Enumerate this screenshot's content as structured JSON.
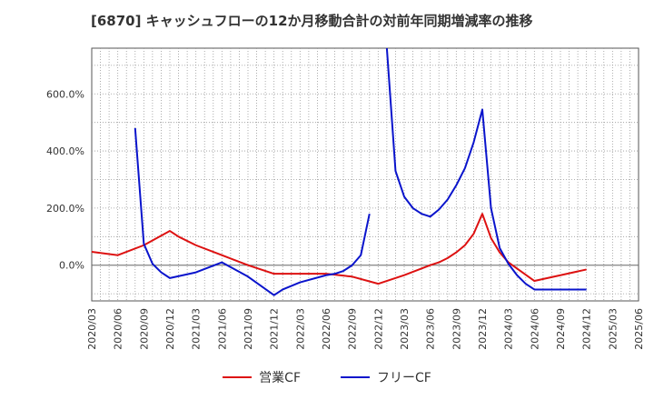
{
  "chart_data": {
    "type": "line",
    "title": "[6870]  キャッシュフローの12か月移動合計の対前年同期増減率の推移",
    "ylim": [
      -125,
      760
    ],
    "yticks": [
      0,
      200,
      400,
      600
    ],
    "ytick_labels": [
      "0.0%",
      "200.0%",
      "400.0%",
      "600.0%"
    ],
    "grid": true,
    "legend_position": "bottom",
    "x_start": "2020/03",
    "x_end": "2025/06",
    "x_tick_labels": [
      "2020/03",
      "2020/06",
      "2020/09",
      "2020/12",
      "2021/03",
      "2021/06",
      "2021/09",
      "2021/12",
      "2022/03",
      "2022/06",
      "2022/09",
      "2022/12",
      "2023/03",
      "2023/06",
      "2023/09",
      "2023/12",
      "2024/03",
      "2024/06",
      "2024/09",
      "2024/12",
      "2025/03",
      "2025/06"
    ],
    "series": [
      {
        "name": "営業CF",
        "color": "#dd1111",
        "points": [
          [
            "2020/03",
            47
          ],
          [
            "2020/06",
            35
          ],
          [
            "2020/09",
            70
          ],
          [
            "2020/12",
            120
          ],
          [
            "2021/01",
            100
          ],
          [
            "2021/03",
            70
          ],
          [
            "2021/06",
            35
          ],
          [
            "2021/09",
            0
          ],
          [
            "2021/12",
            -30
          ],
          [
            "2022/03",
            -30
          ],
          [
            "2022/06",
            -30
          ],
          [
            "2022/09",
            -40
          ],
          [
            "2022/12",
            -65
          ],
          [
            "2023/03",
            -35
          ],
          [
            "2023/06",
            0
          ],
          [
            "2023/07",
            10
          ],
          [
            "2023/08",
            25
          ],
          [
            "2023/09",
            45
          ],
          [
            "2023/10",
            70
          ],
          [
            "2023/11",
            110
          ],
          [
            "2023/12",
            180
          ],
          [
            "2024/01",
            95
          ],
          [
            "2024/02",
            45
          ],
          [
            "2024/03",
            10
          ],
          [
            "2024/06",
            -55
          ],
          [
            "2024/09",
            -35
          ],
          [
            "2024/12",
            -15
          ]
        ]
      },
      {
        "name": "フリーCF",
        "color": "#0a14cc",
        "segments": [
          [
            [
              "2020/08",
              480
            ],
            [
              "2020/09",
              75
            ],
            [
              "2020/10",
              5
            ],
            [
              "2020/11",
              -25
            ],
            [
              "2020/12",
              -45
            ],
            [
              "2021/03",
              -25
            ],
            [
              "2021/06",
              10
            ],
            [
              "2021/09",
              -40
            ],
            [
              "2021/12",
              -105
            ],
            [
              "2022/01",
              -85
            ],
            [
              "2022/03",
              -60
            ],
            [
              "2022/06",
              -35
            ],
            [
              "2022/07",
              -30
            ],
            [
              "2022/08",
              -20
            ],
            [
              "2022/09",
              0
            ],
            [
              "2022/10",
              35
            ],
            [
              "2022/11",
              180
            ]
          ],
          [
            [
              "2023/01",
              760
            ],
            [
              "2023/02",
              330
            ],
            [
              "2023/03",
              240
            ],
            [
              "2023/04",
              200
            ],
            [
              "2023/05",
              180
            ],
            [
              "2023/06",
              170
            ],
            [
              "2023/07",
              195
            ],
            [
              "2023/08",
              230
            ],
            [
              "2023/09",
              280
            ],
            [
              "2023/10",
              340
            ],
            [
              "2023/11",
              430
            ],
            [
              "2023/12",
              545
            ],
            [
              "2024/01",
              200
            ],
            [
              "2024/02",
              60
            ],
            [
              "2024/03",
              5
            ],
            [
              "2024/04",
              -35
            ],
            [
              "2024/05",
              -65
            ],
            [
              "2024/06",
              -85
            ],
            [
              "2024/09",
              -85
            ],
            [
              "2024/12",
              -85
            ]
          ]
        ]
      }
    ]
  }
}
